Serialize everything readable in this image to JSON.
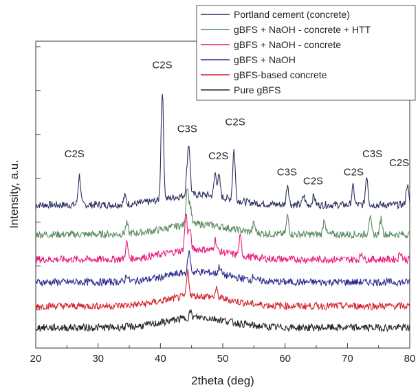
{
  "chart_data": {
    "type": "line",
    "xlabel": "2theta (deg)",
    "ylabel": "Intensity, a.u.",
    "xlim": [
      20,
      80
    ],
    "x_ticks": [
      20,
      30,
      40,
      50,
      60,
      70,
      80
    ],
    "y_tick_count": 7,
    "grid": false,
    "legend_position": "top-right",
    "series": [
      {
        "name": "Portland cement (concrete)",
        "color": "#2b2f5e",
        "baseline": 6.3,
        "peaks": [
          [
            27.0,
            1.3
          ],
          [
            34.3,
            0.35
          ],
          [
            40.3,
            4.8
          ],
          [
            44.3,
            0.9
          ],
          [
            44.6,
            1.9
          ],
          [
            48.8,
            1.0
          ],
          [
            49.4,
            0.9
          ],
          [
            51.8,
            2.2
          ],
          [
            60.4,
            0.9
          ],
          [
            63.0,
            0.4
          ],
          [
            64.6,
            0.4
          ],
          [
            70.9,
            0.8
          ],
          [
            73.1,
            1.3
          ],
          [
            79.6,
            0.9
          ]
        ]
      },
      {
        "name": "gBFS + NaOH - concrete + HTT",
        "color": "#5a8a5e",
        "baseline": 5.0,
        "peaks": [
          [
            34.6,
            0.45
          ],
          [
            44.3,
            1.7
          ],
          [
            44.8,
            0.8
          ],
          [
            55.0,
            0.4
          ],
          [
            60.4,
            0.8
          ],
          [
            66.3,
            0.7
          ],
          [
            73.6,
            0.8
          ],
          [
            75.4,
            0.7
          ]
        ]
      },
      {
        "name": "gBFS + NaOH - concrete",
        "color": "#e8197d",
        "baseline": 3.9,
        "peaks": [
          [
            34.6,
            0.7
          ],
          [
            44.1,
            1.6
          ],
          [
            44.7,
            0.9
          ],
          [
            48.8,
            0.5
          ],
          [
            52.8,
            0.8
          ],
          [
            72.3,
            0.3
          ],
          [
            78.5,
            0.35
          ]
        ]
      },
      {
        "name": "gBFS + NaOH",
        "color": "#2a2a8f",
        "baseline": 2.9,
        "peaks": [
          [
            34.6,
            0.3
          ],
          [
            44.6,
            0.9
          ],
          [
            49.5,
            0.35
          ],
          [
            55.0,
            0.2
          ]
        ]
      },
      {
        "name": "gBFS-based concrete",
        "color": "#d4202a",
        "baseline": 1.85,
        "peaks": [
          [
            44.4,
            1.1
          ],
          [
            49.0,
            0.35
          ]
        ]
      },
      {
        "name": "Pure gBFS",
        "color": "#222222",
        "baseline": 0.9,
        "peaks": [
          [
            44.8,
            0.25
          ]
        ]
      }
    ],
    "annotations": [
      {
        "text": "C2S",
        "x": 26.2,
        "y": 8.4
      },
      {
        "text": "C2S",
        "x": 40.3,
        "y": 12.3
      },
      {
        "text": "C3S",
        "x": 44.3,
        "y": 9.5
      },
      {
        "text": "C2S",
        "x": 49.3,
        "y": 8.3
      },
      {
        "text": "C2S",
        "x": 52.0,
        "y": 9.8
      },
      {
        "text": "C3S",
        "x": 60.3,
        "y": 7.6
      },
      {
        "text": "C2S",
        "x": 64.5,
        "y": 7.2
      },
      {
        "text": "C2S",
        "x": 71.0,
        "y": 7.6
      },
      {
        "text": "C3S",
        "x": 74.0,
        "y": 8.4
      },
      {
        "text": "C2S",
        "x": 78.3,
        "y": 8.0
      }
    ]
  }
}
